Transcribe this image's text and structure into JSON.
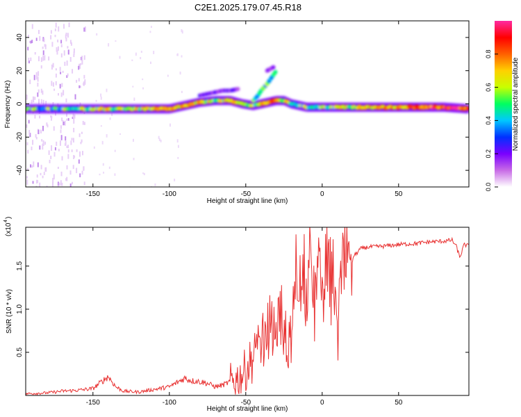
{
  "figure_title": "C2E1.2025.179.07.45.R18",
  "colorbar": {
    "label": "Normalized spectral amplitude",
    "ticks": [
      "0.0",
      "0.2",
      "0.4",
      "0.6",
      "0.8"
    ],
    "tick_values": [
      0.0,
      0.2,
      0.4,
      0.6,
      0.8
    ],
    "range": [
      0,
      1
    ],
    "stops": [
      "#ffffff",
      "#c86be6",
      "#7a00ff",
      "#0030ff",
      "#00c8ff",
      "#00ff60",
      "#c8ff00",
      "#ffd000",
      "#ff6000",
      "#ff0000",
      "#ff2aa0"
    ]
  },
  "chart_data": [
    {
      "type": "heatmap",
      "xlabel": "Height of straight line (km)",
      "ylabel": "Frequency (Hz)",
      "xlim": [
        -194,
        96
      ],
      "ylim": [
        -50,
        50
      ],
      "xticks": [
        -150,
        -100,
        -50,
        0,
        50
      ],
      "xtick_labels": [
        "-150",
        "-100",
        "-50",
        "0",
        "50"
      ],
      "yticks": [
        -40,
        -20,
        0,
        20,
        40
      ],
      "ytick_labels": [
        "-40",
        "-20",
        "0",
        "20",
        "40"
      ],
      "main_band": {
        "center_x": [
          -194,
          -150,
          -120,
          -100,
          -90,
          -80,
          -70,
          -60,
          -52,
          -45,
          -40,
          -35,
          -30,
          -25,
          -20,
          -10,
          0,
          20,
          50,
          80,
          96
        ],
        "center_y": [
          -3,
          -3,
          -3,
          -3,
          -1,
          1,
          2,
          2,
          0,
          -1,
          0,
          1,
          2,
          2,
          0,
          -2,
          -2,
          -2,
          -2,
          -2,
          -3
        ],
        "amplitude": [
          0.45,
          0.55,
          0.6,
          0.65,
          0.7,
          0.6,
          0.6,
          0.6,
          0.55,
          0.55,
          0.7,
          0.75,
          0.7,
          0.6,
          0.5,
          0.5,
          0.55,
          0.6,
          0.75,
          0.9,
          0.8
        ]
      },
      "upper_branches": [
        {
          "x": [
            -80,
            -75,
            -70,
            -65,
            -60,
            -55
          ],
          "y": [
            5,
            6,
            7,
            8,
            8,
            9
          ]
        },
        {
          "x": [
            -45,
            -42,
            -40,
            -38,
            -36,
            -33,
            -30
          ],
          "y": [
            2,
            5,
            8,
            10,
            12,
            16,
            20
          ]
        },
        {
          "x": [
            -36,
            -34,
            -32
          ],
          "y": [
            20,
            21,
            22
          ]
        }
      ],
      "noise_region_x": [
        -194,
        -155
      ]
    },
    {
      "type": "line",
      "xlabel": "Height of straight line (km)",
      "ylabel": "SNR (10 * v/v)",
      "scale_label": "(x10",
      "scale_exp": "4",
      "xlim": [
        -194,
        96
      ],
      "ylim": [
        0,
        1.95
      ],
      "xticks": [
        -150,
        -100,
        -50,
        0,
        50
      ],
      "xtick_labels": [
        "-150",
        "-100",
        "-50",
        "0",
        "50"
      ],
      "yticks": [
        0.5,
        1.0,
        1.5
      ],
      "ytick_labels": [
        "0.5",
        "1.0",
        "1.5"
      ],
      "series": [
        {
          "color": "#e83030",
          "x": [
            -194,
            -180,
            -170,
            -160,
            -150,
            -145,
            -140,
            -135,
            -130,
            -120,
            -110,
            -100,
            -95,
            -90,
            -85,
            -80,
            -75,
            -70,
            -65,
            -60,
            -55,
            -50,
            -45,
            -40,
            -35,
            -30,
            -25,
            -20,
            -17,
            -15,
            -12,
            -10,
            -8,
            -5,
            -2,
            0,
            3,
            5,
            8,
            10,
            12,
            15,
            20,
            25,
            30,
            40,
            50,
            60,
            70,
            80,
            85,
            88,
            90,
            93,
            96
          ],
          "y": [
            0.02,
            0.03,
            0.05,
            0.06,
            0.08,
            0.15,
            0.22,
            0.1,
            0.05,
            0.04,
            0.07,
            0.1,
            0.15,
            0.2,
            0.17,
            0.16,
            0.14,
            0.1,
            0.12,
            0.16,
            0.2,
            0.3,
            0.45,
            0.55,
            0.8,
            0.9,
            0.75,
            0.6,
            1.5,
            1.2,
            1.4,
            1.1,
            1.5,
            1.0,
            1.4,
            1.2,
            1.45,
            1.3,
            1.35,
            0.6,
            1.3,
            1.5,
            1.6,
            1.7,
            1.72,
            1.73,
            1.75,
            1.76,
            1.78,
            1.79,
            1.8,
            1.72,
            1.6,
            1.75,
            1.73
          ]
        }
      ]
    }
  ]
}
